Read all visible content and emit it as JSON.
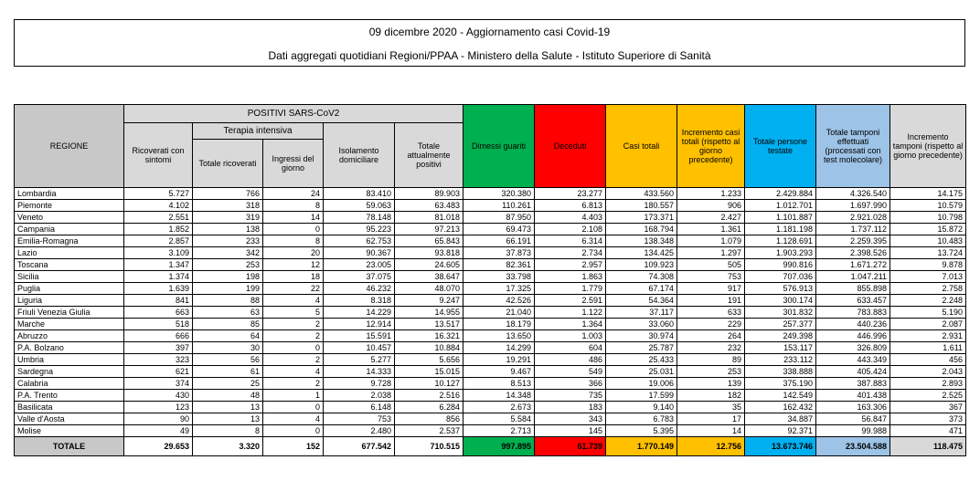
{
  "header": {
    "title": "09 dicembre 2020 - Aggiornamento casi Covid-19",
    "subtitle": "Dati aggregati quotidiani Regioni/PPAA - Ministero della Salute - Istituto Superiore di Sanità"
  },
  "table": {
    "col_regione": "REGIONE",
    "group_positivi": "POSITIVI SARS-CoV2",
    "group_terapia": "Terapia intensiva",
    "col_ricoverati": "Ricoverati con sintomi",
    "col_totale_ricoverati": "Totale ricoverati",
    "col_ingressi": "Ingressi del giorno",
    "col_isolamento": "Isolamento domiciliare",
    "col_totale_positivi": "Totale attualmente positivi",
    "col_dimessi": "Dimessi guariti",
    "col_deceduti": "Deceduti",
    "col_casi": "Casi totali",
    "col_incremento": "Incremento casi totali (rispetto al giorno precedente)",
    "col_persone": "Totale persone testate",
    "col_tamponi": "Totale tamponi effettuati (processati con test molecolare)",
    "col_incr_tamponi": "Incremento tamponi (rispetto al giorno precedente)",
    "rows": [
      [
        "Lombardia",
        "5.727",
        "766",
        "24",
        "83.410",
        "89.903",
        "320.380",
        "23.277",
        "433.560",
        "1.233",
        "2.429.884",
        "4.326.540",
        "14.175"
      ],
      [
        "Piemonte",
        "4.102",
        "318",
        "8",
        "59.063",
        "63.483",
        "110.261",
        "6.813",
        "180.557",
        "906",
        "1.012.701",
        "1.697.990",
        "10.579"
      ],
      [
        "Veneto",
        "2.551",
        "319",
        "14",
        "78.148",
        "81.018",
        "87.950",
        "4.403",
        "173.371",
        "2.427",
        "1.101.887",
        "2.921.028",
        "10.798"
      ],
      [
        "Campania",
        "1.852",
        "138",
        "0",
        "95.223",
        "97.213",
        "69.473",
        "2.108",
        "168.794",
        "1.361",
        "1.181.198",
        "1.737.112",
        "15.872"
      ],
      [
        "Emilia-Romagna",
        "2.857",
        "233",
        "8",
        "62.753",
        "65.843",
        "66.191",
        "6.314",
        "138.348",
        "1.079",
        "1.128.691",
        "2.259.395",
        "10.483"
      ],
      [
        "Lazio",
        "3.109",
        "342",
        "20",
        "90.367",
        "93.818",
        "37.873",
        "2.734",
        "134.425",
        "1.297",
        "1.903.293",
        "2.398.526",
        "13.724"
      ],
      [
        "Toscana",
        "1.347",
        "253",
        "12",
        "23.005",
        "24.605",
        "82.361",
        "2.957",
        "109.923",
        "505",
        "990.816",
        "1.671.272",
        "9.878"
      ],
      [
        "Sicilia",
        "1.374",
        "198",
        "18",
        "37.075",
        "38.647",
        "33.798",
        "1.863",
        "74.308",
        "753",
        "707.036",
        "1.047.211",
        "7.013"
      ],
      [
        "Puglia",
        "1.639",
        "199",
        "22",
        "46.232",
        "48.070",
        "17.325",
        "1.779",
        "67.174",
        "917",
        "576.913",
        "855.898",
        "2.758"
      ],
      [
        "Liguria",
        "841",
        "88",
        "4",
        "8.318",
        "9.247",
        "42.526",
        "2.591",
        "54.364",
        "191",
        "300.174",
        "633.457",
        "2.248"
      ],
      [
        "Friuli Venezia Giulia",
        "663",
        "63",
        "5",
        "14.229",
        "14.955",
        "21.040",
        "1.122",
        "37.117",
        "633",
        "301.832",
        "783.883",
        "5.190"
      ],
      [
        "Marche",
        "518",
        "85",
        "2",
        "12.914",
        "13.517",
        "18.179",
        "1.364",
        "33.060",
        "229",
        "257.377",
        "440.236",
        "2.087"
      ],
      [
        "Abruzzo",
        "666",
        "64",
        "2",
        "15.591",
        "16.321",
        "13.650",
        "1.003",
        "30.974",
        "264",
        "249.398",
        "446.996",
        "2.931"
      ],
      [
        "P.A. Bolzano",
        "397",
        "30",
        "0",
        "10.457",
        "10.884",
        "14.299",
        "604",
        "25.787",
        "232",
        "153.117",
        "326.809",
        "1.611"
      ],
      [
        "Umbria",
        "323",
        "56",
        "2",
        "5.277",
        "5.656",
        "19.291",
        "486",
        "25.433",
        "89",
        "233.112",
        "443.349",
        "456"
      ],
      [
        "Sardegna",
        "621",
        "61",
        "4",
        "14.333",
        "15.015",
        "9.467",
        "549",
        "25.031",
        "253",
        "338.888",
        "405.424",
        "2.043"
      ],
      [
        "Calabria",
        "374",
        "25",
        "2",
        "9.728",
        "10.127",
        "8.513",
        "366",
        "19.006",
        "139",
        "375.190",
        "387.883",
        "2.893"
      ],
      [
        "P.A. Trento",
        "430",
        "48",
        "1",
        "2.038",
        "2.516",
        "14.348",
        "735",
        "17.599",
        "182",
        "142.549",
        "401.438",
        "2.525"
      ],
      [
        "Basilicata",
        "123",
        "13",
        "0",
        "6.148",
        "6.284",
        "2.673",
        "183",
        "9.140",
        "35",
        "162.432",
        "163.306",
        "367"
      ],
      [
        "Valle d'Aosta",
        "90",
        "13",
        "4",
        "753",
        "856",
        "5.584",
        "343",
        "6.783",
        "17",
        "34.887",
        "56.847",
        "373"
      ],
      [
        "Molise",
        "49",
        "8",
        "0",
        "2.480",
        "2.537",
        "2.713",
        "145",
        "5.395",
        "14",
        "92.371",
        "99.988",
        "471"
      ]
    ],
    "total": [
      "TOTALE",
      "29.653",
      "3.320",
      "152",
      "677.542",
      "710.515",
      "997.895",
      "61.739",
      "1.770.149",
      "12.756",
      "13.673.746",
      "23.504.588",
      "118.475"
    ]
  }
}
